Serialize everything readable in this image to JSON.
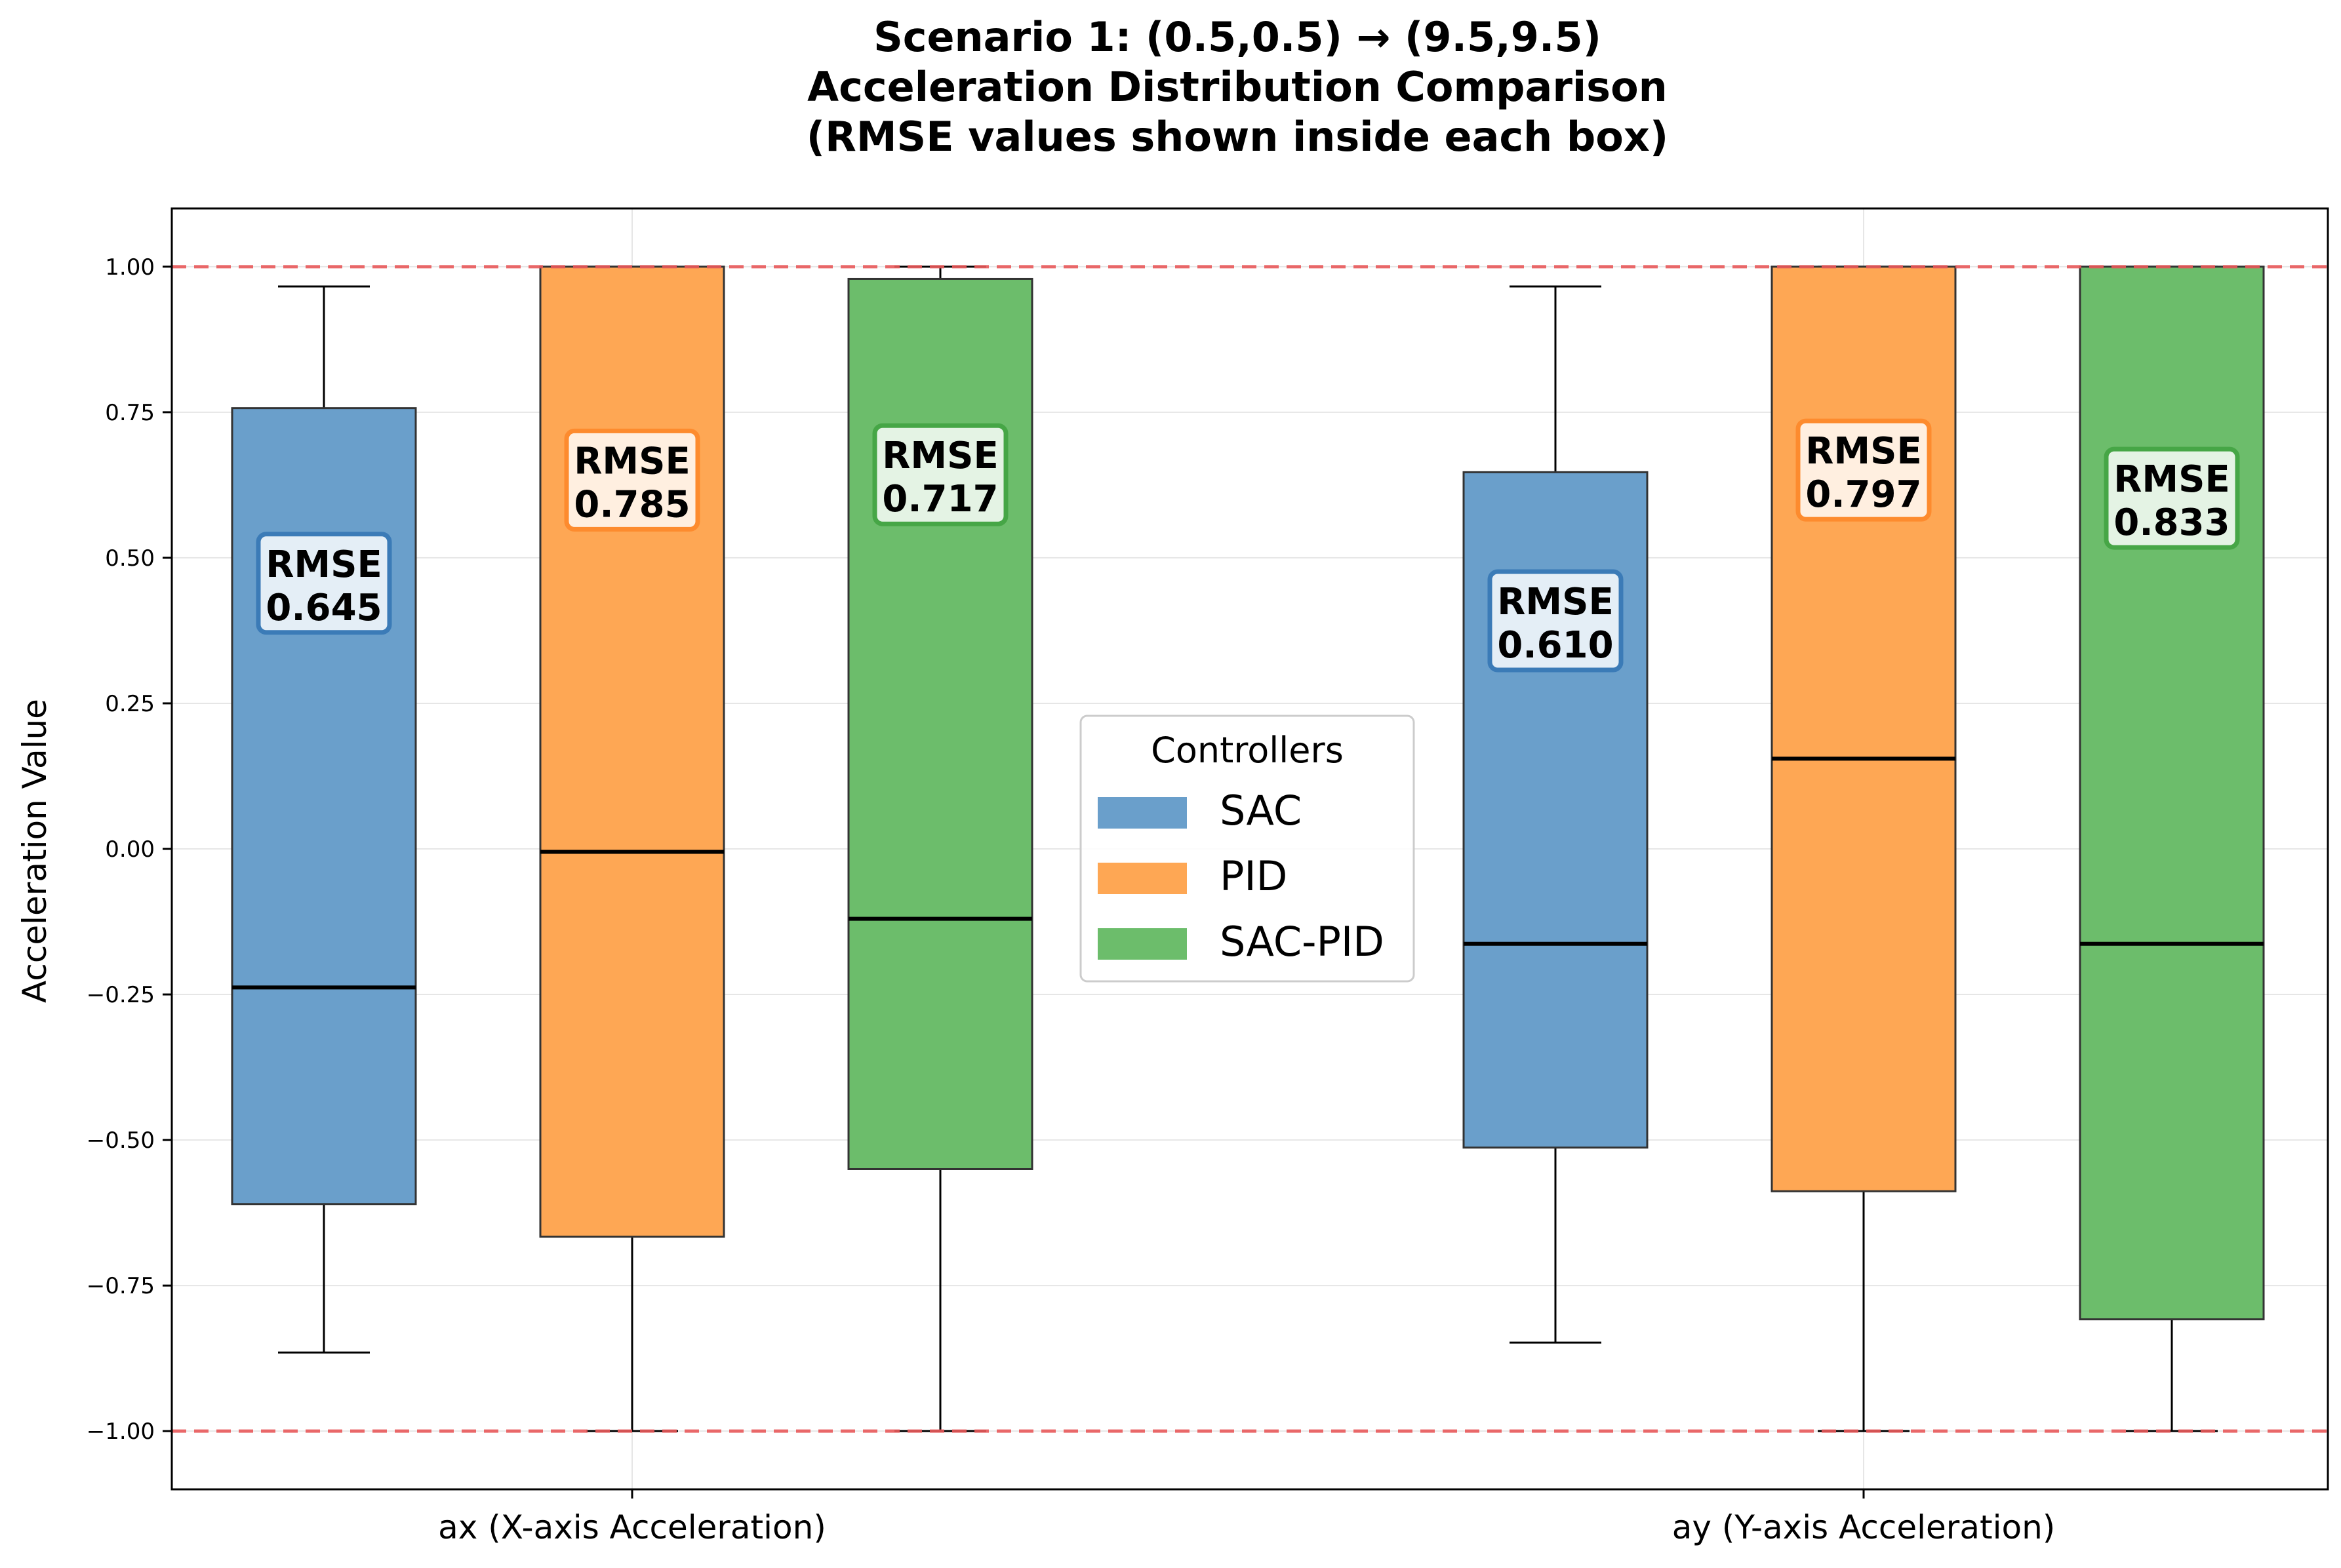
{
  "chart_data": {
    "type": "box",
    "title": [
      "Scenario 1: (0.5,0.5) → (9.5,9.5)",
      "Acceleration Distribution Comparison",
      "(RMSE values shown inside each box)"
    ],
    "xlabel": "",
    "ylabel": "Acceleration Value",
    "ylim": [
      -1.1,
      1.1
    ],
    "yticks": [
      1.0,
      0.75,
      0.5,
      0.25,
      0.0,
      -0.25,
      -0.5,
      -0.75,
      -1.0
    ],
    "ytick_labels": [
      "1.00",
      "0.75",
      "0.50",
      "0.25",
      "0.00",
      "−0.25",
      "−0.50",
      "−0.75",
      "−1.00"
    ],
    "categories": [
      "ax (X-axis Acceleration)",
      "ay (Y-axis Acceleration)"
    ],
    "reference_lines": [
      1.0,
      -1.0
    ],
    "reference_line_color": "#e8595a",
    "grid": true,
    "legend": {
      "title": "Controllers",
      "placement": "center",
      "entries": [
        "SAC",
        "PID",
        "SAC-PID"
      ]
    },
    "rmse_label": "RMSE",
    "series": [
      {
        "name": "SAC",
        "color": "#6a9fcb",
        "edge_color": "#3b7bb7",
        "boxes": [
          {
            "whisker_low": -0.865,
            "q1": -0.61,
            "median": -0.238,
            "q3": 0.757,
            "whisker_high": 0.966,
            "rmse": "0.645"
          },
          {
            "whisker_low": -0.848,
            "q1": -0.513,
            "median": -0.163,
            "q3": 0.647,
            "whisker_high": 0.966,
            "rmse": "0.610"
          }
        ]
      },
      {
        "name": "PID",
        "color": "#fea754",
        "edge_color": "#fd8b2e",
        "boxes": [
          {
            "whisker_low": -1.0,
            "q1": -0.666,
            "median": -0.005,
            "q3": 1.0,
            "whisker_high": 1.0,
            "rmse": "0.785"
          },
          {
            "whisker_low": -1.0,
            "q1": -0.588,
            "median": 0.155,
            "q3": 1.0,
            "whisker_high": 1.0,
            "rmse": "0.797"
          }
        ]
      },
      {
        "name": "SAC-PID",
        "color": "#6cbd6b",
        "edge_color": "#46a646",
        "boxes": [
          {
            "whisker_low": -1.0,
            "q1": -0.55,
            "median": -0.12,
            "q3": 0.979,
            "whisker_high": 1.0,
            "rmse": "0.717"
          },
          {
            "whisker_low": -1.0,
            "q1": -0.808,
            "median": -0.163,
            "q3": 1.0,
            "whisker_high": 1.0,
            "rmse": "0.833"
          }
        ]
      }
    ]
  }
}
